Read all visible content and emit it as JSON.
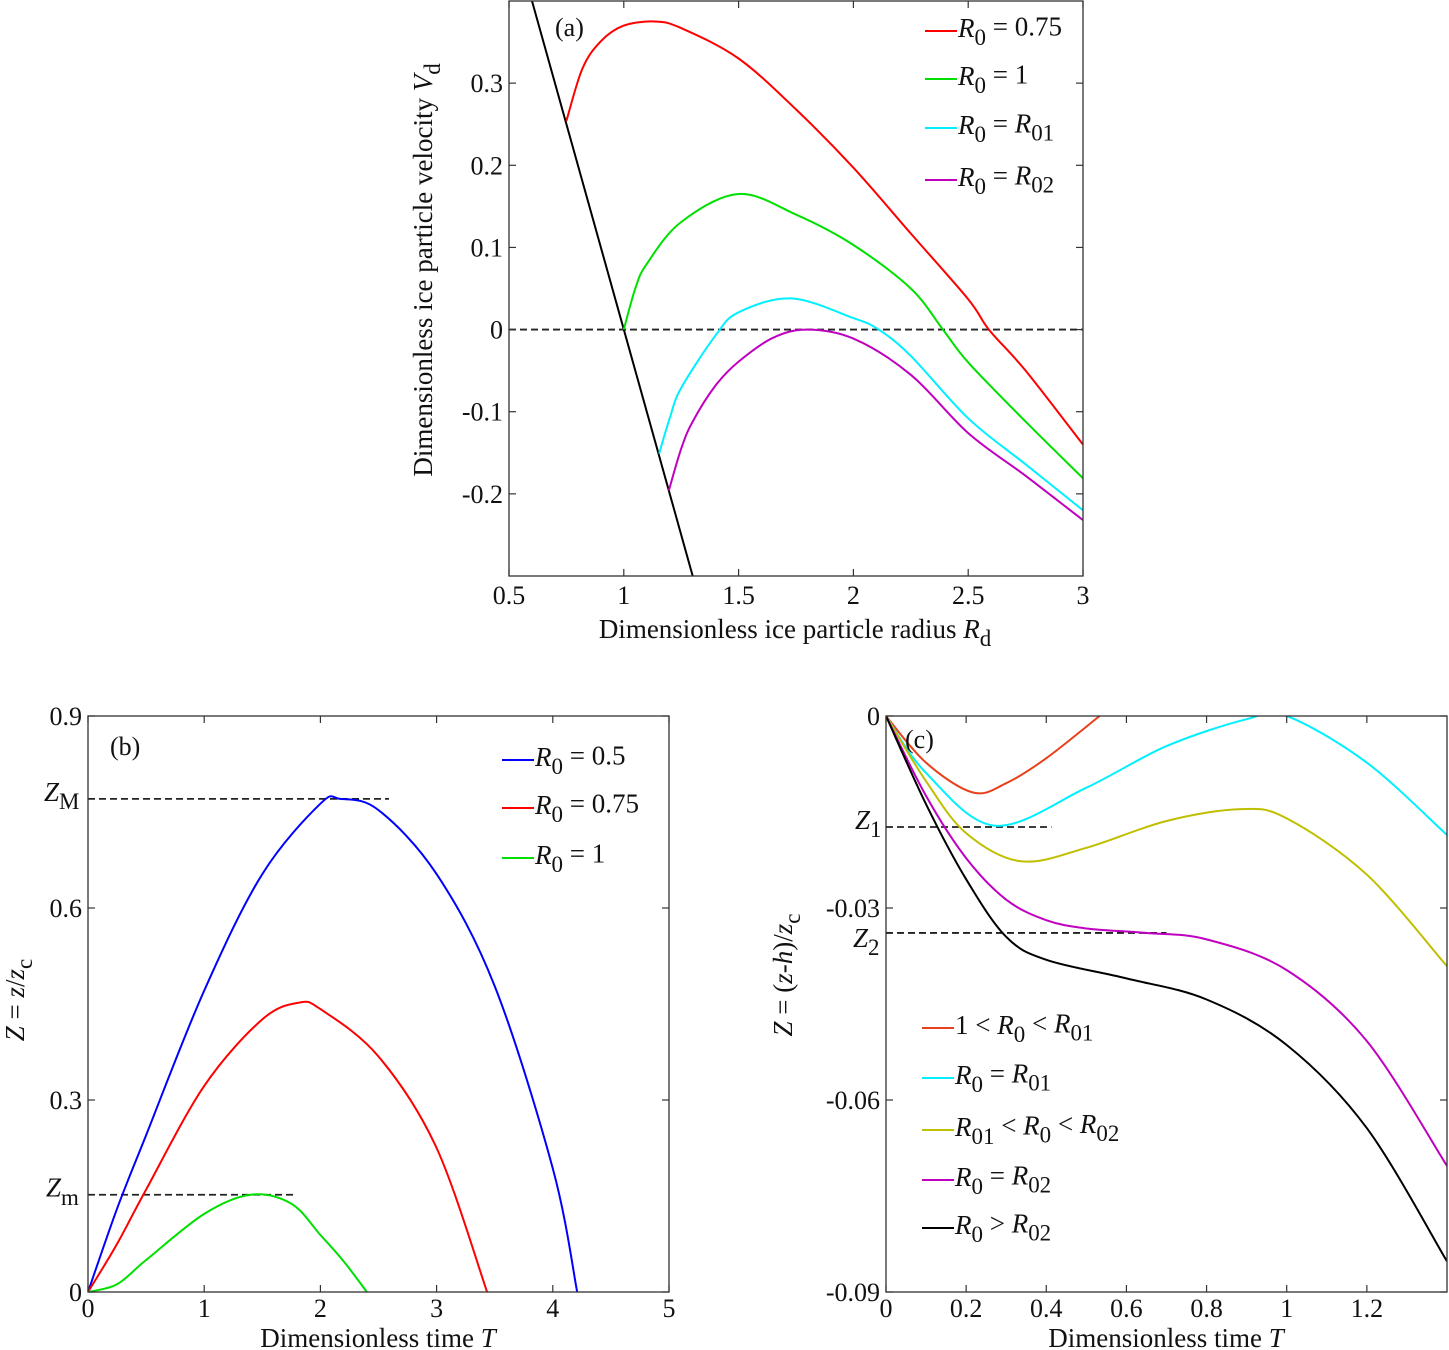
{
  "chart_data": [
    {
      "type": "line",
      "panel_label": "(a)",
      "xlabel": [
        {
          "t": "Dimensionless ice particle radius "
        },
        {
          "t": "R",
          "i": true
        },
        {
          "t": "d",
          "sub": true
        }
      ],
      "ylabel": [
        {
          "t": "Dimensionless ice particle velocity "
        },
        {
          "t": "V",
          "i": true
        },
        {
          "t": "d",
          "sub": true
        }
      ],
      "xlim": [
        0.5,
        3
      ],
      "ylim": [
        -0.3,
        0.4
      ],
      "xticks": [
        0.5,
        1,
        1.5,
        2,
        2.5,
        3
      ],
      "xtick_labels": [
        "0.5",
        "1",
        "1.5",
        "2",
        "2.5",
        "3"
      ],
      "yticks": [
        -0.2,
        -0.1,
        0,
        0.1,
        0.2,
        0.3
      ],
      "ytick_labels": [
        "-0.2",
        "-0.1",
        "0",
        "0.1",
        "0.2",
        "0.3"
      ],
      "legend_position": "top-right",
      "reference_lines": [
        {
          "y": 0,
          "x": [
            0.5,
            3
          ],
          "style": "dashed"
        }
      ],
      "annotations": [],
      "series": [
        {
          "name": null,
          "color": "#000000",
          "x": [
            0.6,
            1.3
          ],
          "y": [
            0.4,
            -0.3
          ]
        },
        {
          "name": [
            {
              "t": "R",
              "i": true
            },
            {
              "t": "0",
              "sub": true
            },
            {
              "t": " = 0.75"
            }
          ],
          "color": "#ff0000",
          "x": [
            0.75,
            0.82,
            0.9,
            1.0,
            1.134,
            1.25,
            1.5,
            1.75,
            2.0,
            2.25,
            2.5,
            2.59,
            2.75,
            3.0
          ],
          "y": [
            0.254,
            0.318,
            0.351,
            0.37,
            0.375,
            0.367,
            0.33,
            0.268,
            0.197,
            0.117,
            0.037,
            0.0,
            -0.05,
            -0.14
          ]
        },
        {
          "name": [
            {
              "t": "R",
              "i": true
            },
            {
              "t": "0",
              "sub": true
            },
            {
              "t": " = 1"
            }
          ],
          "color": "#00e000",
          "x": [
            1.0,
            1.05,
            1.1,
            1.25,
            1.5,
            1.75,
            2.0,
            2.25,
            2.39,
            2.5,
            2.75,
            3.0
          ],
          "y": [
            0.0,
            0.05,
            0.08,
            0.131,
            0.165,
            0.14,
            0.103,
            0.05,
            0.0,
            -0.04,
            -0.112,
            -0.181
          ]
        },
        {
          "name": [
            {
              "t": "R",
              "i": true
            },
            {
              "t": "0",
              "sub": true
            },
            {
              "t": " = "
            },
            {
              "t": "R",
              "i": true
            },
            {
              "t": "01",
              "sub": true
            }
          ],
          "color": "#00f0ff",
          "x": [
            1.154,
            1.2,
            1.25,
            1.4,
            1.5,
            1.73,
            2.0,
            2.11,
            2.25,
            2.5,
            2.75,
            3.0
          ],
          "y": [
            -0.151,
            -0.108,
            -0.071,
            -0.007,
            0.021,
            0.038,
            0.014,
            0.0,
            -0.032,
            -0.108,
            -0.164,
            -0.22
          ]
        },
        {
          "name": [
            {
              "t": "R",
              "i": true
            },
            {
              "t": "0",
              "sub": true
            },
            {
              "t": " = "
            },
            {
              "t": "R",
              "i": true
            },
            {
              "t": "02",
              "sub": true
            }
          ],
          "color": "#c000c0",
          "x": [
            1.196,
            1.25,
            1.3,
            1.4,
            1.5,
            1.65,
            1.8,
            2.0,
            2.25,
            2.5,
            2.75,
            3.0
          ],
          "y": [
            -0.196,
            -0.145,
            -0.112,
            -0.068,
            -0.039,
            -0.01,
            0.0,
            -0.011,
            -0.055,
            -0.126,
            -0.178,
            -0.232
          ]
        }
      ]
    },
    {
      "type": "line",
      "panel_label": "(b)",
      "xlabel": [
        {
          "t": "Dimensionless time "
        },
        {
          "t": "T",
          "i": true
        }
      ],
      "ylabel": [
        {
          "t": "Z",
          "i": true
        },
        {
          "t": " = "
        },
        {
          "t": "z",
          "i": true
        },
        {
          "t": "/"
        },
        {
          "t": "z",
          "i": true
        },
        {
          "t": "c",
          "sub": true
        }
      ],
      "xlim": [
        0,
        5
      ],
      "ylim": [
        0,
        0.9
      ],
      "xticks": [
        0,
        1,
        2,
        3,
        4,
        5
      ],
      "xtick_labels": [
        "0",
        "1",
        "2",
        "3",
        "4",
        "5"
      ],
      "yticks": [
        0,
        0.3,
        0.6,
        0.9
      ],
      "ytick_labels": [
        "0",
        "0.3",
        "0.6",
        "0.9"
      ],
      "legend_position": "top-right",
      "reference_lines": [
        {
          "y": 0.7705,
          "x": [
            0,
            2.59
          ],
          "style": "dashed",
          "label": [
            {
              "t": "Z",
              "i": true
            },
            {
              "t": "M",
              "sub": true
            }
          ]
        },
        {
          "y": 0.152,
          "x": [
            0,
            1.79
          ],
          "style": "dashed",
          "label": [
            {
              "t": "Z",
              "i": true
            },
            {
              "t": "m",
              "sub": true
            }
          ]
        }
      ],
      "series": [
        {
          "name": [
            {
              "t": "R",
              "i": true
            },
            {
              "t": "0",
              "sub": true
            },
            {
              "t": " = 0.5"
            }
          ],
          "color": "#0000ff",
          "x": [
            0,
            0.25,
            0.5,
            1.0,
            1.5,
            2.0,
            2.17,
            2.5,
            3.0,
            3.5,
            4.0,
            4.21
          ],
          "y": [
            0,
            0.13,
            0.245,
            0.471,
            0.653,
            0.763,
            0.7705,
            0.753,
            0.653,
            0.478,
            0.193,
            0.0
          ]
        },
        {
          "name": [
            {
              "t": "R",
              "i": true
            },
            {
              "t": "0",
              "sub": true
            },
            {
              "t": " = 0.75"
            }
          ],
          "color": "#ff0000",
          "x": [
            0,
            0.25,
            0.5,
            1.0,
            1.5,
            1.815,
            2.0,
            2.5,
            3.0,
            3.435
          ],
          "y": [
            0,
            0.075,
            0.16,
            0.322,
            0.426,
            0.452,
            0.442,
            0.368,
            0.225,
            0.0
          ]
        },
        {
          "name": [
            {
              "t": "R",
              "i": true
            },
            {
              "t": "0",
              "sub": true
            },
            {
              "t": " = 1"
            }
          ],
          "color": "#00e000",
          "x": [
            0,
            0.25,
            0.5,
            1.0,
            1.4,
            1.75,
            2.0,
            2.2,
            2.4
          ],
          "y": [
            0,
            0.012,
            0.05,
            0.122,
            0.152,
            0.138,
            0.089,
            0.048,
            0.0
          ]
        }
      ]
    },
    {
      "type": "line",
      "panel_label": "(c)",
      "xlabel": [
        {
          "t": "Dimensionless time "
        },
        {
          "t": "T",
          "i": true
        }
      ],
      "ylabel": [
        {
          "t": "Z",
          "i": true
        },
        {
          "t": " = ("
        },
        {
          "t": "z",
          "i": true
        },
        {
          "t": "-"
        },
        {
          "t": "h",
          "i": true
        },
        {
          "t": ")/"
        },
        {
          "t": "z",
          "i": true
        },
        {
          "t": "c",
          "sub": true
        }
      ],
      "xlim": [
        0,
        1.4
      ],
      "ylim": [
        -0.09,
        0
      ],
      "xticks": [
        0,
        0.2,
        0.4,
        0.6,
        0.8,
        1.0,
        1.2
      ],
      "xtick_labels": [
        "0",
        "0.2",
        "0.4",
        "0.6",
        "0.8",
        "1",
        "1.2"
      ],
      "yticks": [
        0,
        -0.03,
        -0.06,
        -0.09
      ],
      "ytick_labels": [
        "0",
        "-0.03",
        "-0.06",
        "-0.09"
      ],
      "legend_position": "bottom-left",
      "reference_lines": [
        {
          "y": -0.01734,
          "x": [
            0,
            0.413
          ],
          "style": "dashed",
          "label": [
            {
              "t": "Z",
              "i": true
            },
            {
              "t": "1",
              "sub": true
            }
          ]
        },
        {
          "y": -0.0339,
          "x": [
            0,
            0.7
          ],
          "style": "dashed",
          "label": [
            {
              "t": "Z",
              "i": true
            },
            {
              "t": "2",
              "sub": true
            }
          ]
        }
      ],
      "series": [
        {
          "name": [
            {
              "t": "1 < "
            },
            {
              "t": "R",
              "i": true
            },
            {
              "t": "0",
              "sub": true
            },
            {
              "t": " < "
            },
            {
              "t": "R",
              "i": true
            },
            {
              "t": "01",
              "sub": true
            }
          ],
          "color": "#e8401c",
          "x": [
            0,
            0.1,
            0.217,
            0.3,
            0.4,
            0.533
          ],
          "y": [
            0,
            -0.0073,
            -0.01195,
            -0.0105,
            -0.0066,
            0.0
          ]
        },
        {
          "name": [
            {
              "t": "R",
              "i": true
            },
            {
              "t": "0",
              "sub": true
            },
            {
              "t": " = "
            },
            {
              "t": "R",
              "i": true
            },
            {
              "t": "01",
              "sub": true
            }
          ],
          "color": "#00f0ff",
          "x": [
            0,
            0.1,
            0.272,
            0.5,
            0.7,
            0.9,
            1.0,
            1.2,
            1.4
          ],
          "y": [
            0,
            -0.0089,
            -0.01714,
            -0.0112,
            -0.0047,
            -0.0005,
            0.0,
            -0.0073,
            -0.0186
          ]
        },
        {
          "name": [
            {
              "t": "R",
              "i": true
            },
            {
              "t": "01",
              "sub": true
            },
            {
              "t": " < "
            },
            {
              "t": "R",
              "i": true
            },
            {
              "t": "0",
              "sub": true
            },
            {
              "t": " < "
            },
            {
              "t": "R",
              "i": true
            },
            {
              "t": "02",
              "sub": true
            }
          ],
          "color": "#bfbf00",
          "x": [
            0,
            0.1,
            0.2,
            0.337,
            0.5,
            0.7,
            0.886,
            1.0,
            1.2,
            1.4
          ],
          "y": [
            0,
            -0.0102,
            -0.0183,
            -0.0227,
            -0.0206,
            -0.0164,
            -0.01455,
            -0.016,
            -0.0248,
            -0.0391
          ]
        },
        {
          "name": [
            {
              "t": "R",
              "i": true
            },
            {
              "t": "0",
              "sub": true
            },
            {
              "t": " = "
            },
            {
              "t": "R",
              "i": true
            },
            {
              "t": "02",
              "sub": true
            }
          ],
          "color": "#c000c0",
          "x": [
            0,
            0.1,
            0.2,
            0.3,
            0.4,
            0.5,
            0.65,
            0.8,
            1.0,
            1.2,
            1.4
          ],
          "y": [
            0,
            -0.0125,
            -0.0222,
            -0.0287,
            -0.0319,
            -0.0332,
            -0.0339,
            -0.0349,
            -0.0397,
            -0.0508,
            -0.0703
          ]
        },
        {
          "name": [
            {
              "t": "R",
              "i": true
            },
            {
              "t": "0",
              "sub": true
            },
            {
              "t": " > "
            },
            {
              "t": "R",
              "i": true
            },
            {
              "t": "02",
              "sub": true
            }
          ],
          "color": "#000000",
          "x": [
            0,
            0.1,
            0.2,
            0.3,
            0.4,
            0.6,
            0.8,
            1.0,
            1.2,
            1.4
          ],
          "y": [
            0,
            -0.0138,
            -0.0255,
            -0.0345,
            -0.0381,
            -0.041,
            -0.0443,
            -0.0514,
            -0.0644,
            -0.0852
          ]
        }
      ]
    }
  ]
}
